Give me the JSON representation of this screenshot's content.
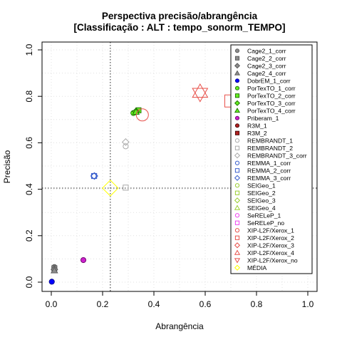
{
  "chart_data": {
    "type": "scatter",
    "title": "Perspectiva precisão/abrangência",
    "subtitle": "[Classificação : ALT : tempo_sonorm_TEMPO]",
    "xlabel": "Abrangência",
    "ylabel": "Precisão",
    "xlim": [
      0,
      1
    ],
    "ylim": [
      0,
      1
    ],
    "x_ticks": [
      "0.0",
      "0.2",
      "0.4",
      "0.6",
      "0.8",
      "1.0"
    ],
    "y_ticks": [
      "0.0",
      "0.2",
      "0.4",
      "0.6",
      "0.8",
      "1.0"
    ],
    "grid": true,
    "legend_position": "right",
    "reference_lines": {
      "x": 0.23,
      "y": 0.405
    },
    "series": [
      {
        "name": "Cage2_1_corr",
        "shape": "circle",
        "color": "#555555",
        "fill": "#8c8c8c",
        "points": [
          [
            0.012,
            0.065
          ]
        ]
      },
      {
        "name": "Cage2_2_corr",
        "shape": "square",
        "color": "#555555",
        "fill": "#8c8c8c",
        "points": [
          [
            0.012,
            0.06
          ]
        ]
      },
      {
        "name": "Cage2_3_corr",
        "shape": "diamond",
        "color": "#555555",
        "fill": "#8c8c8c",
        "points": [
          [
            0.012,
            0.055
          ]
        ]
      },
      {
        "name": "Cage2_4_corr",
        "shape": "triangle",
        "color": "#555555",
        "fill": "#8c8c8c",
        "points": [
          [
            0.012,
            0.05
          ]
        ]
      },
      {
        "name": "DobrEM_1_corr",
        "shape": "circle",
        "color": "#00008b",
        "fill": "#0000ff",
        "points": [
          [
            0.002,
            0.002
          ]
        ]
      },
      {
        "name": "PorTexTO_1_corr",
        "shape": "circle",
        "color": "#1a6b00",
        "fill": "#66ee22",
        "points": [
          [
            0.32,
            0.728
          ]
        ]
      },
      {
        "name": "PorTexTO_2_corr",
        "shape": "square",
        "color": "#1a6b00",
        "fill": "#66ee22",
        "points": [
          [
            0.34,
            0.74
          ]
        ]
      },
      {
        "name": "PorTexTO_3_corr",
        "shape": "diamond",
        "color": "#1a6b00",
        "fill": "#66ee22",
        "points": [
          [
            0.33,
            0.735
          ]
        ]
      },
      {
        "name": "PorTexTO_4_corr",
        "shape": "triangle",
        "color": "#1a6b00",
        "fill": "#66ee22",
        "points": [
          [
            0.33,
            0.733
          ]
        ]
      },
      {
        "name": "Priberam_1",
        "shape": "circle",
        "color": "#6a006a",
        "fill": "#cc22cc",
        "points": [
          [
            0.125,
            0.095
          ]
        ]
      },
      {
        "name": "R3M_1",
        "shape": "circle",
        "color": "#400000",
        "fill": "#b22222",
        "points": []
      },
      {
        "name": "R3M_2",
        "shape": "square",
        "color": "#400000",
        "fill": "#b22222",
        "points": []
      },
      {
        "name": "REMBRANDT_1",
        "shape": "circle-open",
        "color": "#aaaaaa",
        "fill": "none",
        "points": [
          [
            0.29,
            0.585
          ]
        ]
      },
      {
        "name": "REMBRANDT_2",
        "shape": "square-open",
        "color": "#aaaaaa",
        "fill": "none",
        "points": [
          [
            0.29,
            0.407
          ]
        ]
      },
      {
        "name": "REMBRANDT_3_corr",
        "shape": "diamond-open",
        "color": "#aaaaaa",
        "fill": "none",
        "points": [
          [
            0.29,
            0.603
          ]
        ]
      },
      {
        "name": "REMMA_1_corr",
        "shape": "circle-open",
        "color": "#3a5fcd",
        "fill": "none",
        "points": [
          [
            0.165,
            0.457
          ]
        ]
      },
      {
        "name": "REMMA_2_corr",
        "shape": "square-open",
        "color": "#3a5fcd",
        "fill": "none",
        "points": [
          [
            0.167,
            0.457
          ]
        ]
      },
      {
        "name": "REMMA_3_corr",
        "shape": "diamond-open",
        "color": "#3a5fcd",
        "fill": "none",
        "points": [
          [
            0.168,
            0.457
          ]
        ]
      },
      {
        "name": "SEIGeo_1",
        "shape": "circle-open",
        "color": "#9acd32",
        "fill": "none",
        "points": []
      },
      {
        "name": "SEIGeo_2",
        "shape": "square-open",
        "color": "#9acd32",
        "fill": "none",
        "points": []
      },
      {
        "name": "SEIGeo_3",
        "shape": "diamond-open",
        "color": "#9acd32",
        "fill": "none",
        "points": []
      },
      {
        "name": "SEIGeo_4",
        "shape": "triangle-open",
        "color": "#9acd32",
        "fill": "none",
        "points": []
      },
      {
        "name": "SeRELeP_1",
        "shape": "circle-open",
        "color": "#ee44ee",
        "fill": "none",
        "points": []
      },
      {
        "name": "SeRELeP_no",
        "shape": "square-open",
        "color": "#ee44ee",
        "fill": "none",
        "points": []
      },
      {
        "name": "XIP-L2F/Xerox_1",
        "shape": "circle-open",
        "color": "#e8504a",
        "fill": "none",
        "points": [
          [
            0.355,
            0.72
          ]
        ]
      },
      {
        "name": "XIP-L2F/Xerox_2",
        "shape": "square-open",
        "color": "#e8504a",
        "fill": "none",
        "points": [
          [
            0.7,
            0.78
          ]
        ]
      },
      {
        "name": "XIP-L2F/Xerox_3",
        "shape": "diamond-open",
        "color": "#e8504a",
        "fill": "none",
        "points": []
      },
      {
        "name": "XIP-L2F/Xerox_4",
        "shape": "triangle-open",
        "color": "#e8504a",
        "fill": "none",
        "points": [
          [
            0.58,
            0.82
          ]
        ]
      },
      {
        "name": "XIP-L2F/Xerox_no",
        "shape": "triangle-down-open",
        "color": "#e8504a",
        "fill": "none",
        "points": [
          [
            0.58,
            0.81
          ]
        ]
      },
      {
        "name": "MÉDIA",
        "shape": "diamond-open",
        "color": "#ffff00",
        "fill": "none",
        "points": [
          [
            0.23,
            0.405
          ]
        ]
      }
    ]
  }
}
